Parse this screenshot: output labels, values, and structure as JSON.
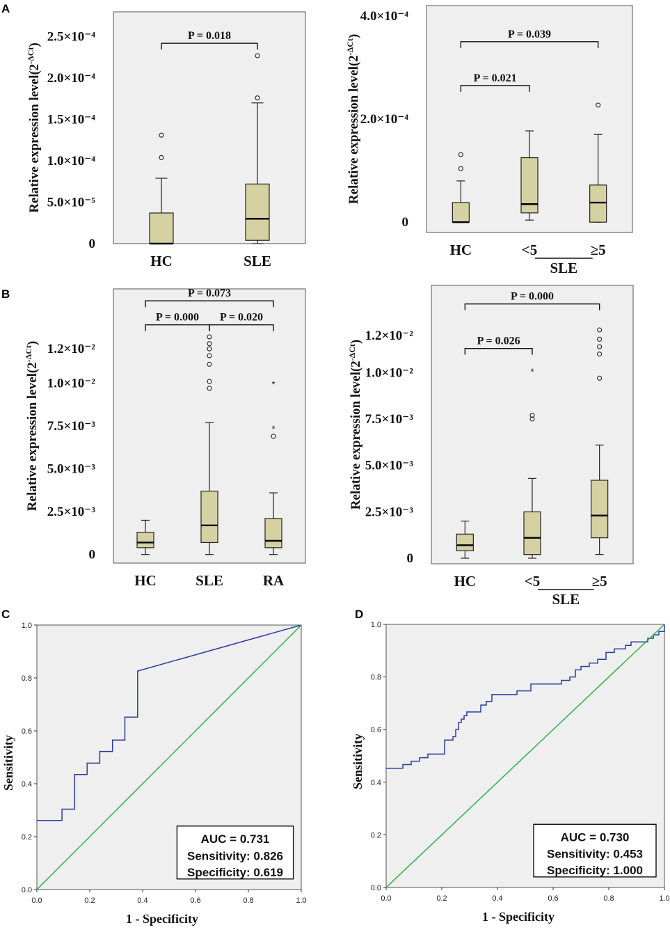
{
  "colors": {
    "panel_bg": "#efefef",
    "box_fill": "#d6d1a3",
    "roc_curve": "#2a3d9b",
    "diagonal": "#2bb34a",
    "frame": "#555555"
  },
  "panel_labels": [
    "A",
    "B",
    "C",
    "D"
  ],
  "chart_data": [
    {
      "id": "A-left",
      "type": "box",
      "ylabel_main": "Relative expression level(2",
      "ylabel_sup": "-ΔCt",
      "ylabel_close": ")",
      "ylim": [
        0,
        0.00028
      ],
      "yticks": [
        {
          "value": 0,
          "label": "0"
        },
        {
          "value": 5e-05,
          "label": "5.0×10⁻⁵"
        },
        {
          "value": 0.0001,
          "label": "1.0×10⁻⁴"
        },
        {
          "value": 0.00015,
          "label": "1.5×10⁻⁴"
        },
        {
          "value": 0.0002,
          "label": "2.0×10⁻⁴"
        },
        {
          "value": 0.00025,
          "label": "2.5×10⁻⁴"
        }
      ],
      "categories": [
        "HC",
        "SLE"
      ],
      "boxes": [
        {
          "category": "HC",
          "min": 0,
          "q1": 0,
          "median": 0,
          "q3": 3.7e-05,
          "max": 7.9e-05,
          "outliers": [
            {
              "v": 0.000104,
              "m": "o"
            },
            {
              "v": 0.000131,
              "m": "o"
            }
          ]
        },
        {
          "category": "SLE",
          "min": 0,
          "q1": 4e-06,
          "median": 3e-05,
          "q3": 7.2e-05,
          "max": 0.00017,
          "outliers": [
            {
              "v": 0.000176,
              "m": "o"
            },
            {
              "v": 0.000227,
              "m": "o"
            }
          ]
        }
      ],
      "brackets": [
        {
          "from": 0,
          "to": 1,
          "label": "P = 0.018",
          "level": 0.000242
        }
      ],
      "group_label": null
    },
    {
      "id": "A-right",
      "type": "box",
      "ylabel_main": "Relative expression level(2",
      "ylabel_sup": "-ΔCt",
      "ylabel_close": ")",
      "ylim": [
        -2e-05,
        0.00042
      ],
      "yticks": [
        {
          "value": 0,
          "label": "0"
        },
        {
          "value": 0.0002,
          "label": "2.0×10⁻⁴"
        },
        {
          "value": 0.0004,
          "label": "4.0×10⁻⁴"
        }
      ],
      "categories": [
        "HC",
        "<5",
        "≥5"
      ],
      "boxes": [
        {
          "category": "HC",
          "min": 0,
          "q1": 0,
          "median": 0,
          "q3": 3.8e-05,
          "max": 8e-05,
          "outliers": [
            {
              "v": 0.000104,
              "m": "o"
            },
            {
              "v": 0.000131,
              "m": "o"
            }
          ]
        },
        {
          "category": "<5",
          "min": 4e-06,
          "q1": 1.8e-05,
          "median": 3.5e-05,
          "q3": 0.000125,
          "max": 0.000177,
          "outliers": []
        },
        {
          "category": "≥5",
          "min": 0,
          "q1": 0,
          "median": 3.8e-05,
          "q3": 7.2e-05,
          "max": 0.00017,
          "outliers": [
            {
              "v": 0.000227,
              "m": "o"
            }
          ]
        }
      ],
      "brackets": [
        {
          "from": 0,
          "to": 1,
          "label": "P = 0.021",
          "level": 0.000265
        },
        {
          "from": 0,
          "to": 2,
          "label": "P = 0.039",
          "level": 0.00035
        }
      ],
      "group_label": {
        "label": "SLE",
        "from": 1,
        "to": 2
      }
    },
    {
      "id": "B-left",
      "type": "box",
      "ylabel_main": "Relative expression level(2",
      "ylabel_sup": "-ΔCt",
      "ylabel_close": ")",
      "ylim": [
        -0.0005,
        0.0155
      ],
      "yticks": [
        {
          "value": 0,
          "label": "0"
        },
        {
          "value": 0.0025,
          "label": "2.5×10⁻³"
        },
        {
          "value": 0.005,
          "label": "5.0×10⁻³"
        },
        {
          "value": 0.0075,
          "label": "7.5×10⁻³"
        },
        {
          "value": 0.01,
          "label": "1.0×10⁻²"
        },
        {
          "value": 0.012,
          "label": "1.2×10⁻²"
        }
      ],
      "categories": [
        "HC",
        "SLE",
        "RA"
      ],
      "boxes": [
        {
          "category": "HC",
          "min": 0,
          "q1": 0.0004,
          "median": 0.0007,
          "q3": 0.0013,
          "max": 0.002,
          "outliers": []
        },
        {
          "category": "SLE",
          "min": 0,
          "q1": 0.0007,
          "median": 0.0017,
          "q3": 0.0037,
          "max": 0.0077,
          "outliers": [
            {
              "v": 0.0097,
              "m": "o"
            },
            {
              "v": 0.0101,
              "m": "o"
            },
            {
              "v": 0.0111,
              "m": "o"
            },
            {
              "v": 0.0116,
              "m": "o"
            },
            {
              "v": 0.012,
              "m": "o"
            },
            {
              "v": 0.0123,
              "m": "o"
            },
            {
              "v": 0.0127,
              "m": "o"
            }
          ]
        },
        {
          "category": "RA",
          "min": 0,
          "q1": 0.0004,
          "median": 0.0008,
          "q3": 0.0021,
          "max": 0.0036,
          "outliers": [
            {
              "v": 0.0069,
              "m": "o"
            },
            {
              "v": 0.0074,
              "m": "*"
            },
            {
              "v": 0.01,
              "m": "*"
            }
          ]
        }
      ],
      "brackets": [
        {
          "from": 0,
          "to": 1,
          "label": "P = 0.000",
          "level": 0.0134
        },
        {
          "from": 1,
          "to": 2,
          "label": "P = 0.020",
          "level": 0.0134
        },
        {
          "from": 0,
          "to": 2,
          "label": "P = 0.073",
          "level": 0.0148
        }
      ],
      "group_label": null
    },
    {
      "id": "B-right",
      "type": "box",
      "ylabel_main": "Relative expression level(2",
      "ylabel_sup": "-ΔCt",
      "ylabel_close": ")",
      "ylim": [
        -0.0003,
        0.0147
      ],
      "yticks": [
        {
          "value": 0,
          "label": "0"
        },
        {
          "value": 0.0025,
          "label": "2.5×10⁻³"
        },
        {
          "value": 0.005,
          "label": "5.0×10⁻³"
        },
        {
          "value": 0.0075,
          "label": "7.5×10⁻³"
        },
        {
          "value": 0.01,
          "label": "1.0×10⁻²"
        },
        {
          "value": 0.012,
          "label": "1.2×10⁻²"
        }
      ],
      "categories": [
        "HC",
        "<5",
        "≥5"
      ],
      "boxes": [
        {
          "category": "HC",
          "min": 0,
          "q1": 0.0004,
          "median": 0.0007,
          "q3": 0.0013,
          "max": 0.002,
          "outliers": []
        },
        {
          "category": "<5",
          "min": 0,
          "q1": 0.0002,
          "median": 0.0011,
          "q3": 0.0025,
          "max": 0.0043,
          "outliers": [
            {
              "v": 0.0075,
              "m": "o"
            },
            {
              "v": 0.0077,
              "m": "o"
            },
            {
              "v": 0.0101,
              "m": "*"
            }
          ]
        },
        {
          "category": "≥5",
          "min": 0.0002,
          "q1": 0.0011,
          "median": 0.0023,
          "q3": 0.0042,
          "max": 0.0061,
          "outliers": [
            {
              "v": 0.0097,
              "m": "o"
            },
            {
              "v": 0.011,
              "m": "o"
            },
            {
              "v": 0.0114,
              "m": "o"
            },
            {
              "v": 0.0118,
              "m": "o"
            },
            {
              "v": 0.0123,
              "m": "o"
            }
          ]
        }
      ],
      "brackets": [
        {
          "from": 0,
          "to": 1,
          "label": "P = 0.026",
          "level": 0.0113
        },
        {
          "from": 0,
          "to": 2,
          "label": "P = 0.000",
          "level": 0.0137
        }
      ],
      "group_label": {
        "label": "SLE",
        "from": 1,
        "to": 2
      }
    },
    {
      "id": "C",
      "type": "line",
      "title": "",
      "xlabel": "1 - Specificity",
      "ylabel": "Sensitivity",
      "xlim": [
        0,
        1
      ],
      "ylim": [
        0,
        1
      ],
      "xticks": [
        "0.0",
        "0.2",
        "0.4",
        "0.6",
        "0.8",
        "1.0"
      ],
      "yticks": [
        "0.0",
        "0.2",
        "0.4",
        "0.6",
        "0.8",
        "1.0"
      ],
      "series": [
        {
          "name": "ROC",
          "x": [
            0,
            0.095,
            0.095,
            0.143,
            0.143,
            0.19,
            0.19,
            0.238,
            0.238,
            0.286,
            0.286,
            0.333,
            0.333,
            0.381,
            0.381,
            1.0
          ],
          "y": [
            0.261,
            0.261,
            0.304,
            0.304,
            0.435,
            0.435,
            0.478,
            0.478,
            0.522,
            0.522,
            0.565,
            0.565,
            0.652,
            0.652,
            0.826,
            1.0
          ]
        },
        {
          "name": "Reference",
          "x": [
            0,
            1
          ],
          "y": [
            0,
            1
          ]
        }
      ],
      "annotation": {
        "auc": "AUC = 0.731",
        "sensitivity": "Sensitivity: 0.826",
        "specificity": "Specificity: 0.619"
      }
    },
    {
      "id": "D",
      "type": "line",
      "title": "",
      "xlabel": "1 - Specificity",
      "ylabel": "Sensitivity",
      "xlim": [
        0,
        1
      ],
      "ylim": [
        0,
        1
      ],
      "xticks": [
        "0.0",
        "0.2",
        "0.4",
        "0.6",
        "0.8",
        "1.0"
      ],
      "yticks": [
        "0.0",
        "0.2",
        "0.4",
        "0.6",
        "0.8",
        "1.0"
      ],
      "series": [
        {
          "name": "ROC",
          "x": [
            0,
            0.06,
            0.06,
            0.09,
            0.09,
            0.12,
            0.12,
            0.15,
            0.15,
            0.21,
            0.21,
            0.24,
            0.24,
            0.25,
            0.25,
            0.26,
            0.26,
            0.27,
            0.27,
            0.28,
            0.28,
            0.29,
            0.29,
            0.34,
            0.34,
            0.36,
            0.36,
            0.38,
            0.38,
            0.47,
            0.47,
            0.52,
            0.52,
            0.63,
            0.63,
            0.66,
            0.66,
            0.68,
            0.68,
            0.7,
            0.7,
            0.73,
            0.73,
            0.76,
            0.76,
            0.79,
            0.79,
            0.82,
            0.82,
            0.86,
            0.86,
            0.88,
            0.88,
            0.94,
            0.94,
            0.96,
            0.96,
            0.98,
            0.98,
            1.0,
            1.0
          ],
          "y": [
            0.453,
            0.453,
            0.467,
            0.467,
            0.48,
            0.48,
            0.493,
            0.493,
            0.507,
            0.507,
            0.56,
            0.56,
            0.573,
            0.573,
            0.6,
            0.6,
            0.627,
            0.627,
            0.64,
            0.64,
            0.653,
            0.653,
            0.667,
            0.667,
            0.693,
            0.693,
            0.707,
            0.707,
            0.733,
            0.733,
            0.747,
            0.747,
            0.773,
            0.773,
            0.787,
            0.787,
            0.8,
            0.8,
            0.827,
            0.827,
            0.84,
            0.84,
            0.853,
            0.853,
            0.867,
            0.867,
            0.893,
            0.893,
            0.907,
            0.907,
            0.92,
            0.92,
            0.933,
            0.933,
            0.947,
            0.947,
            0.96,
            0.96,
            0.973,
            0.973,
            1.0
          ]
        },
        {
          "name": "Reference",
          "x": [
            0,
            1
          ],
          "y": [
            0,
            1
          ]
        }
      ],
      "annotation": {
        "auc": "AUC = 0.730",
        "sensitivity": "Sensitivity: 0.453",
        "specificity": "Specificity: 1.000"
      }
    }
  ]
}
